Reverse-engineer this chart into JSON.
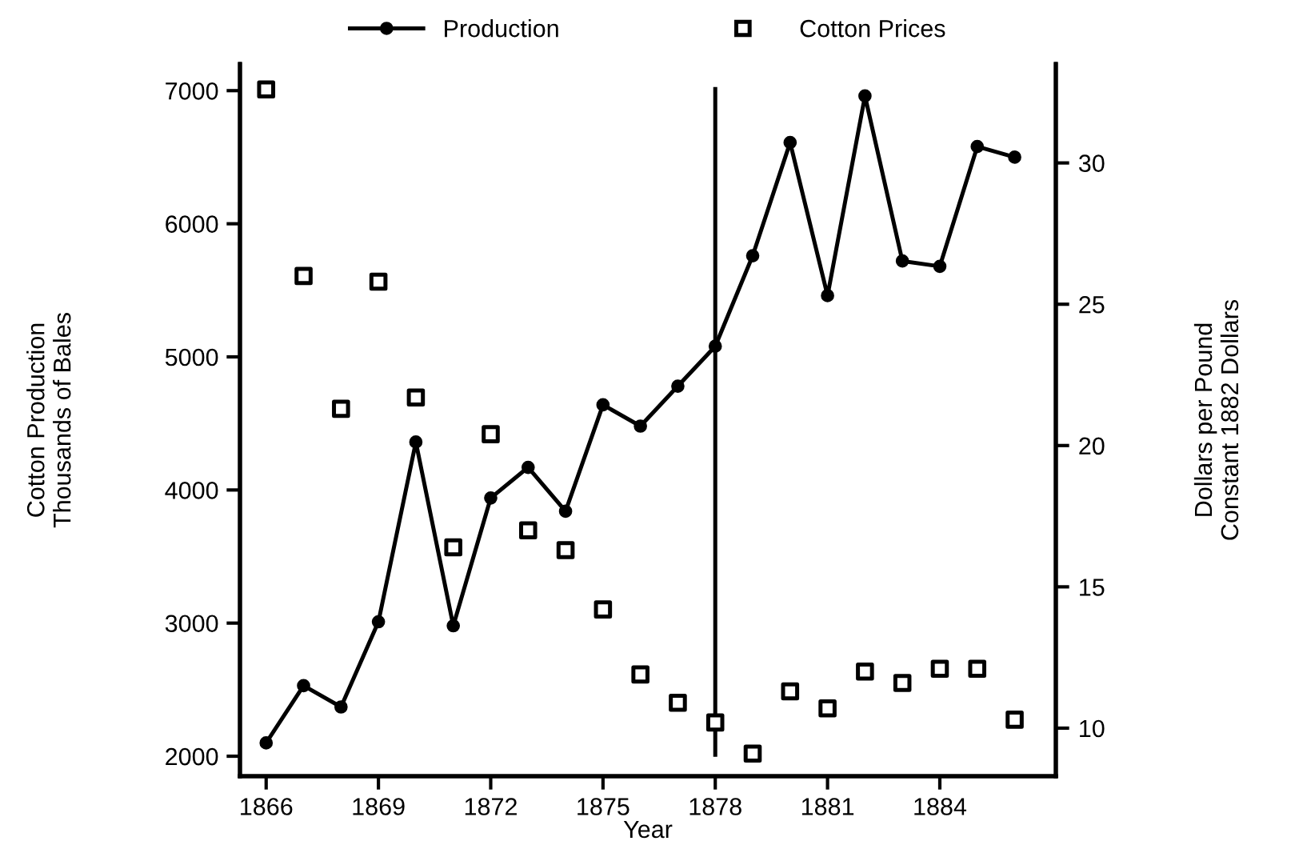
{
  "chart_data": {
    "type": "line",
    "x": [
      1866,
      1867,
      1868,
      1869,
      1870,
      1871,
      1872,
      1873,
      1874,
      1875,
      1876,
      1877,
      1878,
      1879,
      1880,
      1881,
      1882,
      1883,
      1884,
      1885,
      1886
    ],
    "series": [
      {
        "name": "Production",
        "color": "#000000",
        "marker": "circle",
        "values": [
          2100,
          2530,
          2370,
          3010,
          4360,
          2980,
          3940,
          4170,
          3840,
          4640,
          4480,
          4780,
          5080,
          5760,
          6610,
          5460,
          6960,
          5720,
          5680,
          6580,
          6500
        ]
      },
      {
        "name": "Cotton Prices",
        "type": "scatter",
        "axis": "y2",
        "color": "#000000",
        "marker": "square",
        "values": [
          32.6,
          26.0,
          21.3,
          25.8,
          21.7,
          16.4,
          20.4,
          17.0,
          16.3,
          14.2,
          11.9,
          10.9,
          10.2,
          9.1,
          11.3,
          10.7,
          12.0,
          11.6,
          12.1,
          12.1,
          10.3
        ]
      }
    ],
    "xlabel": "Year",
    "ylabel": "Cotton Production\nThousands of Bales",
    "y2label": "Dollars per Pound\nConstant 1882 Dollars",
    "xlim": [
      1865.3,
      1887.1
    ],
    "xticks": [
      1866,
      1869,
      1872,
      1875,
      1878,
      1881,
      1884
    ],
    "ylim": [
      1850,
      7200
    ],
    "yticks": [
      2000,
      3000,
      4000,
      5000,
      6000,
      7000
    ],
    "y2lim": [
      8.3,
      33.5
    ],
    "y2ticks": [
      10,
      15,
      20,
      25,
      30
    ],
    "ref_lines": [
      {
        "axis": "x",
        "value": 1878,
        "color": "#000000",
        "line_style": "solid"
      }
    ],
    "legend": "top",
    "grid": false
  }
}
